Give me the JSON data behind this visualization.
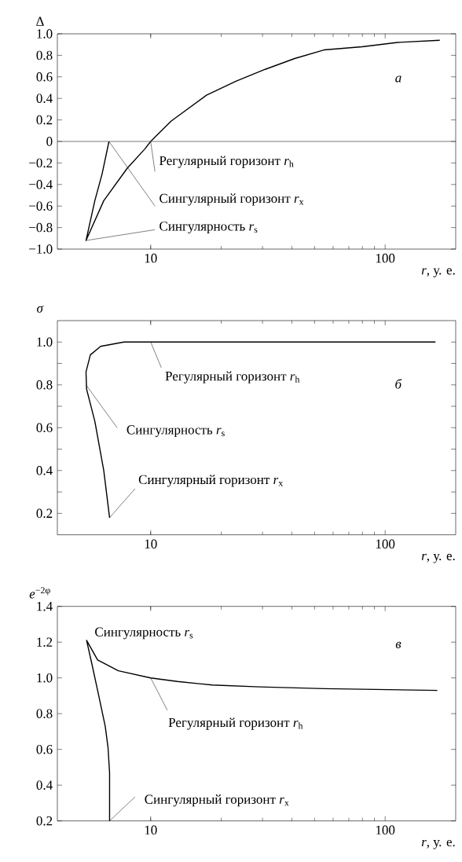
{
  "chart_data": [
    {
      "type": "line",
      "ylabel": "Δ",
      "xlabel": "*r*, у. е.",
      "log": "x",
      "xlim": [
        4,
        200
      ],
      "ylim": [
        -1.0,
        1.0
      ],
      "xticks": [
        10,
        100
      ],
      "yticks": [
        {
          "value": -1.0,
          "label": "−1.0"
        },
        {
          "value": -0.8,
          "label": "−0.8"
        },
        {
          "value": -0.6,
          "label": "−0.6"
        },
        {
          "value": -0.4,
          "label": "−0.4"
        },
        {
          "value": -0.2,
          "label": "−0.2"
        },
        0,
        0.2,
        0.4,
        0.6,
        0.8,
        {
          "value": 1.0,
          "label": "1.0"
        }
      ],
      "ref_lines": [
        {
          "axis": "y",
          "value": 0,
          "color": "#555555"
        }
      ],
      "series": [
        {
          "color": "#000000",
          "x": [
            6.64,
            6.21,
            5.78,
            5.3,
            6.31,
            7.94,
            9.44,
            10,
            12.24,
            17.3,
            23.1,
            30.8,
            41.1,
            54.8,
            79.8,
            113,
            171
          ],
          "values": [
            0,
            -0.3,
            -0.55,
            -0.92,
            -0.55,
            -0.25,
            -0.07,
            0,
            0.19,
            0.43,
            0.56,
            0.67,
            0.77,
            0.85,
            0.88,
            0.92,
            0.94
          ]
        }
      ],
      "annotations": [
        {
          "text": "Регулярный горизонт *r*$_{h}$",
          "x": 10,
          "y": 0
        },
        {
          "text": "Сингулярный горизонт *r*$_{x}$",
          "x": 6.64,
          "y": 0
        },
        {
          "text": "Сингулярность *r*$_{s}$",
          "x": 5.3,
          "y": -0.92
        },
        "*а*"
      ]
    },
    {
      "type": "line",
      "ylabel": "*σ*",
      "xlabel": "*r*, у. е.",
      "log": "x",
      "xlim": [
        4,
        200
      ],
      "ylim": [
        0.1,
        1.1
      ],
      "xticks": [
        10,
        100
      ],
      "yticks": [
        0.2,
        {
          "value": 0.3,
          "label": null
        },
        0.4,
        {
          "value": 0.5,
          "label": null
        },
        0.6,
        {
          "value": 0.7,
          "label": null
        },
        0.8,
        {
          "value": 0.9,
          "label": null
        },
        {
          "value": 1.0,
          "label": "1.0"
        }
      ],
      "series": [
        {
          "color": "#000000",
          "x": [
            6.68,
            6.31,
            5.78,
            5.33,
            5.3,
            5.53,
            6.12,
            7.7,
            10,
            164
          ],
          "values": [
            0.18,
            0.4,
            0.63,
            0.78,
            0.86,
            0.94,
            0.98,
            1.0,
            1.0,
            1.0
          ]
        }
      ],
      "annotations": [
        {
          "text": "Регулярный горизонт *r*$_{h}$",
          "x": 10,
          "y": 1.0
        },
        {
          "text": "Сингулярность *r*$_{s}$",
          "x": 5.3,
          "y": 0.8
        },
        {
          "text": "Сингулярный горизонт *r*$_{x}$",
          "x": 6.68,
          "y": 0.18
        },
        "*б*"
      ]
    },
    {
      "type": "line",
      "ylabel": "*e*$^{−2φ}$",
      "xlabel": "*r*, у. е.",
      "log": "x",
      "xlim": [
        4,
        200
      ],
      "ylim": [
        0.2,
        1.4
      ],
      "xticks": [
        10,
        100
      ],
      "yticks": [
        0.2,
        0.4,
        0.6,
        0.8,
        {
          "value": 1.0,
          "label": "1.0"
        },
        1.2,
        1.4
      ],
      "series": [
        {
          "color": "#000000",
          "x": [
            6.68,
            6.68,
            6.58,
            6.4,
            5.94,
            5.61,
            5.33,
            5.94,
            7.28,
            10,
            13,
            18.3,
            29.1,
            54.8,
            167
          ],
          "values": [
            0.2,
            0.47,
            0.61,
            0.73,
            0.93,
            1.08,
            1.21,
            1.1,
            1.04,
            1.0,
            0.98,
            0.96,
            0.95,
            0.94,
            0.93
          ]
        }
      ],
      "annotations": [
        {
          "text": "Сингулярность *r*$_{s}$",
          "x": 5.33,
          "y": 1.21
        },
        {
          "text": "Регулярный горизонт *r*$_{h}$",
          "x": 10,
          "y": 1.0
        },
        {
          "text": "Сингулярный горизонт *r*$_{x}$",
          "x": 6.68,
          "y": 0.2
        },
        "*в*"
      ]
    }
  ]
}
